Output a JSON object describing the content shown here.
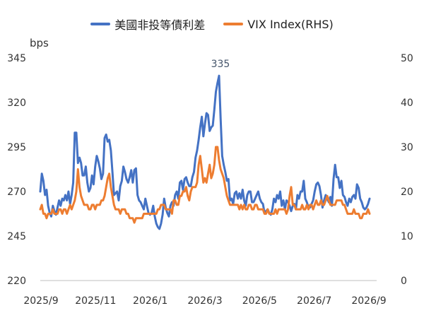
{
  "chart_data": {
    "type": "line",
    "legend_position": "top-center",
    "unit_left": "bps",
    "x_tick_labels": [
      "2025/9",
      "2025/11",
      "2026/1",
      "2026/3",
      "2026/5",
      "2026/7",
      "2026/9"
    ],
    "y_left": {
      "ticks": [
        220,
        245,
        270,
        295,
        320,
        345
      ],
      "range": [
        220,
        345
      ]
    },
    "y_right": {
      "ticks": [
        0,
        10,
        20,
        30,
        40,
        50
      ],
      "range": [
        0,
        50
      ]
    },
    "annotations": [
      {
        "text": "335",
        "series": 0,
        "at": "max"
      }
    ],
    "series": [
      {
        "name": "美國非投等債利差",
        "axis": "left",
        "color": "#4472C4",
        "values": [
          270,
          280,
          276,
          268,
          271,
          262,
          258,
          256,
          262,
          259,
          257,
          261,
          265,
          262,
          266,
          265,
          268,
          265,
          270,
          263,
          268,
          275,
          303,
          303,
          286,
          289,
          286,
          279,
          279,
          284,
          275,
          270,
          272,
          279,
          274,
          284,
          290,
          287,
          283,
          277,
          280,
          300,
          302,
          298,
          299,
          293,
          281,
          268,
          269,
          270,
          265,
          273,
          276,
          284,
          281,
          277,
          275,
          278,
          282,
          275,
          282,
          283,
          268,
          265,
          264,
          262,
          260,
          266,
          262,
          258,
          257,
          258,
          262,
          256,
          252,
          250,
          249,
          252,
          257,
          266,
          261,
          258,
          256,
          262,
          264,
          262,
          268,
          270,
          266,
          275,
          276,
          271,
          277,
          278,
          275,
          273,
          273,
          278,
          281,
          289,
          293,
          299,
          306,
          312,
          301,
          308,
          314,
          313,
          304,
          306,
          307,
          316,
          326,
          331,
          335,
          311,
          290,
          285,
          281,
          276,
          277,
          265,
          266,
          263,
          269,
          270,
          266,
          269,
          266,
          271,
          265,
          262,
          268,
          270,
          270,
          264,
          264,
          266,
          268,
          270,
          266,
          264,
          263,
          258,
          259,
          260,
          258,
          257,
          260,
          266,
          264,
          268,
          266,
          270,
          262,
          265,
          260,
          265,
          264,
          262,
          259,
          262,
          263,
          260,
          268,
          266,
          270,
          270,
          276,
          266,
          264,
          261,
          261,
          263,
          265,
          270,
          274,
          275,
          273,
          268,
          261,
          265,
          268,
          266,
          264,
          267,
          262,
          277,
          285,
          278,
          278,
          272,
          276,
          268,
          267,
          264,
          262,
          266,
          264,
          267,
          268,
          266,
          274,
          272,
          266,
          264,
          261,
          260,
          261,
          263,
          266
        ]
      },
      {
        "name": "VIX Index(RHS)",
        "axis": "right",
        "color": "#ED7D31",
        "values": [
          16,
          17,
          15,
          15,
          14,
          15,
          15,
          15,
          16,
          15,
          15,
          15,
          16,
          16,
          15,
          16,
          16,
          15,
          16,
          17,
          16,
          17,
          18,
          20,
          25,
          21,
          19,
          18,
          17,
          17,
          17,
          16,
          16,
          17,
          17,
          16,
          17,
          17,
          17,
          18,
          18,
          19,
          21,
          23,
          24,
          21,
          19,
          17,
          16,
          16,
          16,
          15,
          16,
          16,
          16,
          15,
          15,
          14,
          14,
          14,
          13,
          14,
          14,
          14,
          14,
          14,
          15,
          15,
          15,
          15,
          15,
          15,
          15,
          15,
          15,
          16,
          16,
          17,
          17,
          17,
          16,
          16,
          16,
          16,
          15,
          18,
          18,
          17,
          17,
          19,
          19,
          20,
          20,
          21,
          19,
          18,
          20,
          21,
          21,
          21,
          22,
          26,
          28,
          25,
          22,
          23,
          22,
          24,
          26,
          23,
          24,
          26,
          30,
          30,
          27,
          25,
          24,
          23,
          21,
          19,
          18,
          17,
          17,
          17,
          17,
          17,
          17,
          16,
          17,
          16,
          17,
          16,
          16,
          17,
          17,
          16,
          16,
          17,
          17,
          16,
          16,
          16,
          16,
          15,
          15,
          16,
          15,
          15,
          15,
          15,
          16,
          15,
          16,
          16,
          16,
          16,
          16,
          15,
          16,
          19,
          21,
          17,
          17,
          16,
          16,
          16,
          16,
          17,
          16,
          16,
          17,
          16,
          17,
          17,
          16,
          17,
          18,
          17,
          17,
          18,
          17,
          17,
          18,
          19,
          18,
          17,
          17,
          17,
          17,
          18,
          18,
          18,
          18,
          17,
          17,
          16,
          15,
          15,
          15,
          15,
          16,
          15,
          15,
          15,
          14,
          14,
          15,
          15,
          15,
          16,
          15
        ]
      }
    ]
  }
}
